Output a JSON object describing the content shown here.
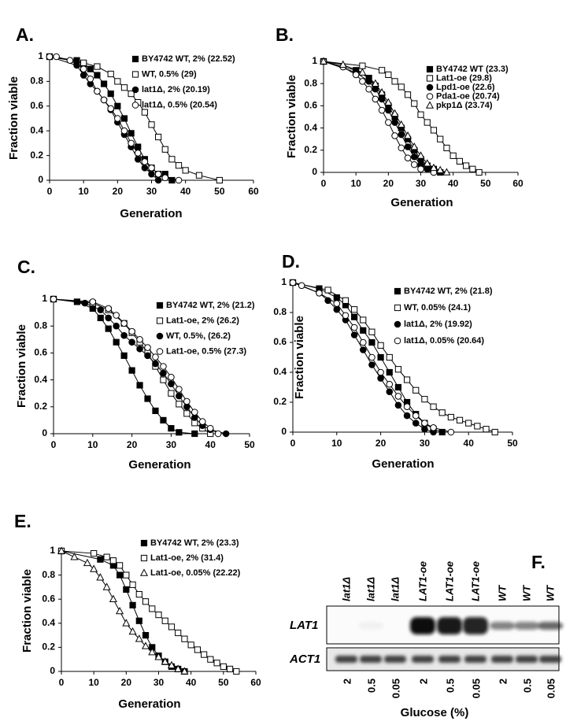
{
  "chart_data": [
    {
      "type": "line",
      "panel": "A.",
      "xlabel": "Generation",
      "ylabel": "Fraction viable",
      "xlim": [
        0,
        60
      ],
      "ylim": [
        0,
        1
      ],
      "xticks": [
        0,
        10,
        20,
        30,
        40,
        50,
        60
      ],
      "yticks": [
        0,
        0.2,
        0.4,
        0.6,
        0.8,
        1
      ],
      "legend": "upper right",
      "series": [
        {
          "name": "BY4742 WT, 2% (22.52)",
          "color": "#000000",
          "marker": "square",
          "filled": true,
          "x": [
            0,
            8,
            10,
            12,
            14,
            16,
            18,
            20,
            22,
            24,
            26,
            28,
            30,
            32,
            34,
            36
          ],
          "values": [
            1,
            0.97,
            0.94,
            0.9,
            0.85,
            0.78,
            0.7,
            0.6,
            0.5,
            0.38,
            0.27,
            0.17,
            0.1,
            0.05,
            0.05,
            0
          ]
        },
        {
          "name": "WT, 0.5% (29)",
          "color": "#000000",
          "marker": "square",
          "filled": false,
          "x": [
            0,
            10,
            14,
            18,
            20,
            22,
            24,
            26,
            28,
            30,
            32,
            34,
            36,
            38,
            40,
            44,
            50
          ],
          "values": [
            1,
            0.95,
            0.92,
            0.86,
            0.8,
            0.75,
            0.7,
            0.63,
            0.55,
            0.45,
            0.35,
            0.25,
            0.17,
            0.12,
            0.08,
            0.04,
            0
          ]
        },
        {
          "name": "lat1Δ, 2% (20.19)",
          "color": "#000000",
          "marker": "circle",
          "filled": true,
          "x": [
            0,
            8,
            10,
            12,
            14,
            16,
            18,
            20,
            22,
            24,
            26,
            28,
            30,
            32
          ],
          "values": [
            1,
            0.93,
            0.85,
            0.78,
            0.72,
            0.65,
            0.57,
            0.47,
            0.37,
            0.27,
            0.17,
            0.1,
            0.05,
            0
          ]
        },
        {
          "name": "lat1Δ, 0.5% (20.54)",
          "color": "#000000",
          "marker": "circle",
          "filled": false,
          "x": [
            0,
            2,
            6,
            10,
            12,
            14,
            16,
            18,
            20,
            22,
            24,
            26,
            28,
            30,
            32,
            34,
            38
          ],
          "values": [
            1,
            1,
            0.97,
            0.9,
            0.82,
            0.72,
            0.65,
            0.58,
            0.5,
            0.4,
            0.3,
            0.22,
            0.15,
            0.1,
            0.05,
            0.02,
            0
          ]
        }
      ]
    },
    {
      "type": "line",
      "panel": "B.",
      "xlabel": "Generation",
      "ylabel": "Fraction viable",
      "xlim": [
        0,
        60
      ],
      "ylim": [
        0,
        1
      ],
      "xticks": [
        0,
        10,
        20,
        30,
        40,
        50,
        60
      ],
      "yticks": [
        0,
        0.2,
        0.4,
        0.6,
        0.8,
        1
      ],
      "legend": "upper right",
      "series": [
        {
          "name": "BY4742 WT (23.3)",
          "color": "#000000",
          "marker": "square",
          "filled": true,
          "x": [
            0,
            10,
            14,
            16,
            18,
            20,
            22,
            24,
            26,
            28,
            30,
            32,
            34,
            36
          ],
          "values": [
            1,
            0.92,
            0.85,
            0.78,
            0.7,
            0.6,
            0.5,
            0.4,
            0.3,
            0.2,
            0.12,
            0.06,
            0.03,
            0
          ]
        },
        {
          "name": "Lat1-oe (29.8)",
          "color": "#000000",
          "marker": "square",
          "filled": false,
          "x": [
            0,
            12,
            18,
            20,
            22,
            24,
            26,
            28,
            30,
            32,
            34,
            36,
            38,
            40,
            42,
            44,
            46,
            48
          ],
          "values": [
            1,
            0.96,
            0.92,
            0.88,
            0.82,
            0.77,
            0.7,
            0.62,
            0.52,
            0.45,
            0.38,
            0.3,
            0.22,
            0.15,
            0.1,
            0.06,
            0.03,
            0
          ]
        },
        {
          "name": "Lpd1-oe (22.6)",
          "color": "#000000",
          "marker": "circle",
          "filled": true,
          "x": [
            0,
            10,
            14,
            16,
            18,
            20,
            22,
            24,
            26,
            28,
            30,
            32,
            34
          ],
          "values": [
            1,
            0.9,
            0.82,
            0.75,
            0.66,
            0.56,
            0.45,
            0.34,
            0.23,
            0.14,
            0.07,
            0.03,
            0
          ]
        },
        {
          "name": "Pda1-oe (20.74)",
          "color": "#000000",
          "marker": "circle",
          "filled": false,
          "x": [
            0,
            6,
            10,
            12,
            14,
            16,
            18,
            20,
            22,
            24,
            26,
            28,
            30,
            34
          ],
          "values": [
            1,
            0.95,
            0.88,
            0.82,
            0.75,
            0.66,
            0.56,
            0.45,
            0.33,
            0.22,
            0.13,
            0.07,
            0.03,
            0
          ]
        },
        {
          "name": "pkp1Δ (23.74)",
          "color": "#000000",
          "marker": "triangle",
          "filled": false,
          "x": [
            0,
            6,
            12,
            16,
            18,
            20,
            22,
            24,
            26,
            28,
            30,
            32,
            34,
            36,
            38
          ],
          "values": [
            1,
            0.97,
            0.9,
            0.8,
            0.72,
            0.63,
            0.53,
            0.43,
            0.33,
            0.23,
            0.15,
            0.08,
            0.04,
            0.02,
            0
          ]
        }
      ]
    },
    {
      "type": "line",
      "panel": "C.",
      "xlabel": "Generation",
      "ylabel": "Fraction viable",
      "xlim": [
        0,
        50
      ],
      "ylim": [
        0,
        1
      ],
      "xticks": [
        0,
        10,
        20,
        30,
        40,
        50
      ],
      "yticks": [
        0,
        0.2,
        0.4,
        0.6,
        0.8,
        1
      ],
      "legend": "upper right",
      "series": [
        {
          "name": "BY4742 WT, 2% (21.2)",
          "color": "#000000",
          "marker": "square",
          "filled": true,
          "x": [
            0,
            6,
            10,
            12,
            14,
            16,
            18,
            20,
            22,
            24,
            26,
            28,
            30,
            32,
            36
          ],
          "values": [
            1,
            0.98,
            0.93,
            0.86,
            0.78,
            0.68,
            0.58,
            0.47,
            0.36,
            0.26,
            0.17,
            0.1,
            0.04,
            0.01,
            0
          ]
        },
        {
          "name": "Lat1-oe, 2% (26.2)",
          "color": "#000000",
          "marker": "square",
          "filled": false,
          "x": [
            0,
            10,
            14,
            18,
            20,
            22,
            24,
            26,
            28,
            30,
            32,
            34,
            36,
            38,
            40
          ],
          "values": [
            1,
            0.97,
            0.92,
            0.82,
            0.75,
            0.68,
            0.6,
            0.5,
            0.4,
            0.3,
            0.22,
            0.15,
            0.08,
            0.04,
            0
          ]
        },
        {
          "name": "WT, 0.5%, (26.2)",
          "color": "#000000",
          "marker": "circle",
          "filled": true,
          "x": [
            0,
            8,
            12,
            14,
            16,
            18,
            20,
            22,
            24,
            26,
            28,
            30,
            32,
            34,
            36,
            38,
            40,
            44
          ],
          "values": [
            1,
            0.97,
            0.92,
            0.86,
            0.8,
            0.73,
            0.68,
            0.63,
            0.58,
            0.52,
            0.45,
            0.37,
            0.28,
            0.2,
            0.12,
            0.06,
            0.03,
            0
          ]
        },
        {
          "name": "Lat1-oe, 0.5% (27.3)",
          "color": "#000000",
          "marker": "circle",
          "filled": false,
          "x": [
            0,
            10,
            14,
            16,
            18,
            20,
            22,
            24,
            26,
            28,
            30,
            32,
            34,
            36,
            38,
            40,
            42
          ],
          "values": [
            1,
            0.98,
            0.93,
            0.88,
            0.82,
            0.76,
            0.7,
            0.64,
            0.57,
            0.5,
            0.42,
            0.33,
            0.24,
            0.16,
            0.09,
            0.04,
            0
          ]
        }
      ]
    },
    {
      "type": "line",
      "panel": "D.",
      "xlabel": "Generation",
      "ylabel": "Fraction viable",
      "xlim": [
        0,
        50
      ],
      "ylim": [
        0,
        1
      ],
      "xticks": [
        0,
        10,
        20,
        30,
        40,
        50
      ],
      "yticks": [
        0,
        0.2,
        0.4,
        0.6,
        0.8,
        1
      ],
      "legend": "upper right",
      "series": [
        {
          "name": "BY4742 WT, 2% (21.8)",
          "color": "#000000",
          "marker": "square",
          "filled": true,
          "x": [
            0,
            6,
            10,
            12,
            14,
            16,
            18,
            20,
            22,
            24,
            26,
            28,
            30,
            32,
            34
          ],
          "values": [
            1,
            0.96,
            0.9,
            0.85,
            0.77,
            0.68,
            0.6,
            0.5,
            0.4,
            0.3,
            0.2,
            0.12,
            0.06,
            0.02,
            0
          ]
        },
        {
          "name": "WT, 0.05%  (24.1)",
          "color": "#000000",
          "marker": "square",
          "filled": false,
          "x": [
            0,
            8,
            12,
            14,
            16,
            18,
            20,
            22,
            24,
            26,
            28,
            30,
            32,
            34,
            36,
            38,
            40,
            42,
            44,
            46
          ],
          "values": [
            1,
            0.95,
            0.88,
            0.82,
            0.75,
            0.67,
            0.58,
            0.5,
            0.42,
            0.35,
            0.28,
            0.22,
            0.17,
            0.13,
            0.1,
            0.08,
            0.06,
            0.04,
            0.02,
            0
          ]
        },
        {
          "name": "lat1Δ, 2% (19.92)",
          "color": "#000000",
          "marker": "circle",
          "filled": true,
          "x": [
            0,
            6,
            8,
            10,
            12,
            14,
            16,
            18,
            20,
            22,
            24,
            26,
            28,
            30,
            32
          ],
          "values": [
            1,
            0.93,
            0.88,
            0.82,
            0.75,
            0.65,
            0.55,
            0.45,
            0.36,
            0.27,
            0.18,
            0.11,
            0.06,
            0.02,
            0
          ]
        },
        {
          "name": "lat1Δ, 0.05% (20.64)",
          "color": "#000000",
          "marker": "circle",
          "filled": false,
          "x": [
            0,
            2,
            6,
            10,
            12,
            14,
            16,
            18,
            20,
            22,
            24,
            26,
            28,
            30,
            32,
            36
          ],
          "values": [
            1,
            0.98,
            0.93,
            0.86,
            0.78,
            0.7,
            0.6,
            0.5,
            0.4,
            0.32,
            0.24,
            0.17,
            0.11,
            0.06,
            0.03,
            0
          ]
        }
      ]
    },
    {
      "type": "line",
      "panel": "E.",
      "xlabel": "Generation",
      "ylabel": "Fraction viable",
      "xlim": [
        0,
        60
      ],
      "ylim": [
        0,
        1
      ],
      "xticks": [
        0,
        10,
        20,
        30,
        40,
        50,
        60
      ],
      "yticks": [
        0,
        0.2,
        0.4,
        0.6,
        0.8,
        1
      ],
      "legend": "upper right",
      "series": [
        {
          "name": "BY4742 WT, 2% (23.3)",
          "color": "#000000",
          "marker": "square",
          "filled": true,
          "x": [
            0,
            12,
            16,
            18,
            20,
            22,
            24,
            26,
            28,
            30,
            32,
            34,
            36,
            38
          ],
          "values": [
            1,
            0.93,
            0.88,
            0.8,
            0.68,
            0.55,
            0.42,
            0.3,
            0.2,
            0.13,
            0.08,
            0.04,
            0.02,
            0
          ]
        },
        {
          "name": "Lat1-oe, 2% (31.4)",
          "color": "#000000",
          "marker": "square",
          "filled": false,
          "x": [
            0,
            10,
            14,
            16,
            18,
            20,
            22,
            24,
            26,
            28,
            30,
            32,
            34,
            36,
            38,
            40,
            42,
            44,
            46,
            48,
            50,
            52,
            54
          ],
          "values": [
            1,
            0.98,
            0.95,
            0.92,
            0.88,
            0.8,
            0.72,
            0.64,
            0.58,
            0.52,
            0.47,
            0.42,
            0.37,
            0.32,
            0.27,
            0.22,
            0.18,
            0.14,
            0.1,
            0.07,
            0.04,
            0.02,
            0
          ]
        },
        {
          "name": "Lat1-oe, 0.05% (22.22)",
          "color": "#000000",
          "marker": "triangle",
          "filled": false,
          "x": [
            0,
            4,
            8,
            10,
            12,
            14,
            16,
            18,
            20,
            22,
            24,
            26,
            28,
            30,
            32,
            34,
            36,
            38
          ],
          "values": [
            1,
            0.95,
            0.9,
            0.85,
            0.78,
            0.7,
            0.6,
            0.5,
            0.4,
            0.33,
            0.27,
            0.21,
            0.16,
            0.12,
            0.08,
            0.05,
            0.02,
            0
          ]
        }
      ]
    }
  ],
  "blot": {
    "panel": "F.",
    "lanes": [
      "lat1Δ",
      "lat1Δ",
      "lat1Δ",
      "LAT1-oe",
      "LAT1-oe",
      "LAT1-oe",
      "WT",
      "WT",
      "WT"
    ],
    "rows": [
      "LAT1",
      "ACT1"
    ],
    "glucose": [
      2,
      0.5,
      0.05,
      2,
      0.5,
      0.05,
      2,
      0.5,
      0.05
    ],
    "axis_label": "Glucose (%)"
  }
}
